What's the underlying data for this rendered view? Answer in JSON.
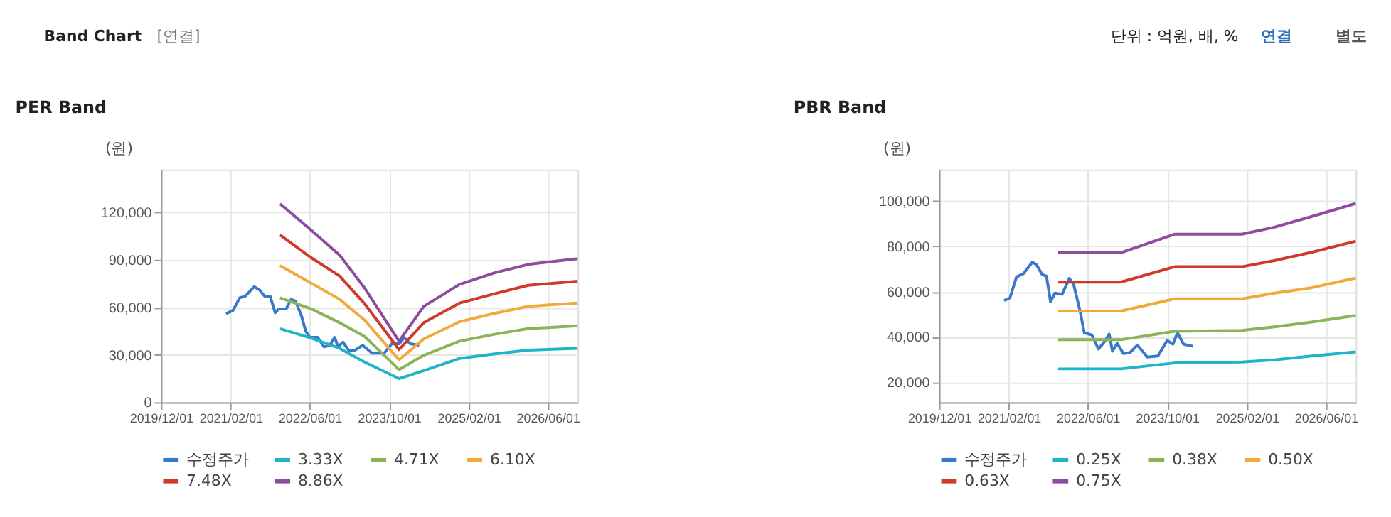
{
  "chart_data": [
    {
      "type": "line",
      "title": "PER Band",
      "ylabel": "(원)",
      "annotations": [
        "Band Chart",
        "[연결]",
        "단위 : 억원, 배, %",
        "연결",
        "별도"
      ],
      "xlim": [
        "2019-12-01",
        "2026-12-01"
      ],
      "xticks": [
        {
          "value": "2019-12-01",
          "label": "2019/12/01"
        },
        {
          "value": "2021-02-01",
          "label": "2021/02/01"
        },
        {
          "value": "2022-06-01",
          "label": "2022/06/01"
        },
        {
          "value": "2023-10-01",
          "label": "2023/10/01"
        },
        {
          "value": "2025-02-01",
          "label": "2025/02/01"
        },
        {
          "value": "2026-06-01",
          "label": "2026/06/01"
        }
      ],
      "ylim": [
        0,
        147000
      ],
      "yticks": [
        {
          "value": 0,
          "label": "0"
        },
        {
          "value": 30000,
          "label": "30,000"
        },
        {
          "value": 60000,
          "label": "60,000"
        },
        {
          "value": 90000,
          "label": "90,000"
        },
        {
          "value": 120000,
          "label": "120,000"
        }
      ],
      "grid": true,
      "legend": "bottom",
      "marker": "none",
      "line_style": "solid",
      "series": [
        {
          "name": "수정주가",
          "color": "#3a78c9",
          "x": [
            "2021-01-03",
            "2021-02-15",
            "2021-03-28",
            "2021-05-01",
            "2021-06-25",
            "2021-07-28",
            "2021-08-28",
            "2021-10-01",
            "2021-11-01",
            "2021-11-22",
            "2022-01-07",
            "2022-02-07",
            "2022-03-05",
            "2022-04-10",
            "2022-05-07",
            "2022-06-01",
            "2022-07-20",
            "2022-08-28",
            "2022-10-01",
            "2022-11-01",
            "2022-11-22",
            "2022-12-22",
            "2023-01-25",
            "2023-03-07",
            "2023-04-22",
            "2023-06-18",
            "2023-09-01",
            "2023-10-18",
            "2023-12-03",
            "2024-01-01",
            "2024-02-07",
            "2024-04-03"
          ],
          "values": [
            56000,
            58000,
            66000,
            67000,
            73000,
            71000,
            67000,
            67000,
            56500,
            59000,
            59000,
            65000,
            64000,
            55000,
            45000,
            41000,
            41000,
            35000,
            36000,
            41000,
            35000,
            38000,
            33000,
            33000,
            36000,
            31000,
            31000,
            37000,
            37000,
            41000,
            37000,
            36000
          ]
        },
        {
          "name": "3.33X",
          "color": "#1fb5c6",
          "x": [
            "2021-12-01",
            "2022-06-07",
            "2022-12-01",
            "2023-05-05",
            "2023-12-01",
            "2024-05-01",
            "2024-12-07",
            "2025-07-10",
            "2026-02-01",
            "2026-12-01"
          ],
          "values": [
            46500,
            40600,
            34100,
            25300,
            15000,
            20000,
            27700,
            30600,
            33000,
            34100
          ]
        },
        {
          "name": "4.71X",
          "color": "#8cb25a",
          "x": [
            "2021-12-01",
            "2022-06-07",
            "2022-12-01",
            "2023-05-05",
            "2023-12-01",
            "2024-05-01",
            "2024-12-07",
            "2025-07-10",
            "2026-02-01",
            "2026-12-01"
          ],
          "values": [
            66000,
            59200,
            50300,
            41500,
            20600,
            29700,
            38600,
            43000,
            46500,
            48300
          ]
        },
        {
          "name": "6.10X",
          "color": "#f2a93b",
          "x": [
            "2021-12-01",
            "2022-06-07",
            "2022-12-01",
            "2023-05-05",
            "2023-12-01",
            "2024-05-01",
            "2024-12-07",
            "2025-07-10",
            "2026-02-01",
            "2026-12-01"
          ],
          "values": [
            86300,
            75400,
            65100,
            51800,
            26800,
            40000,
            50900,
            56200,
            60600,
            62700
          ]
        },
        {
          "name": "7.48X",
          "color": "#d03a2b",
          "x": [
            "2021-12-01",
            "2022-06-07",
            "2022-12-01",
            "2023-05-05",
            "2023-12-01",
            "2024-05-01",
            "2024-12-07",
            "2025-07-10",
            "2026-02-01",
            "2026-12-01"
          ],
          "values": [
            105700,
            91500,
            79800,
            62100,
            33300,
            50300,
            62700,
            68600,
            73900,
            76500
          ]
        },
        {
          "name": "8.86X",
          "color": "#8e4c9e",
          "x": [
            "2021-12-01",
            "2022-06-07",
            "2022-12-01",
            "2023-05-05",
            "2023-12-01",
            "2024-05-01",
            "2024-12-07",
            "2025-07-10",
            "2026-02-01",
            "2026-12-01"
          ],
          "values": [
            125400,
            109000,
            93000,
            72000,
            38600,
            60600,
            74500,
            81800,
            87100,
            90700
          ]
        }
      ]
    },
    {
      "type": "line",
      "title": "PBR Band",
      "ylabel": "(원)",
      "xlim": [
        "2019-12-01",
        "2026-12-01"
      ],
      "xticks": [
        {
          "value": "2019-12-01",
          "label": "2019/12/01"
        },
        {
          "value": "2021-02-01",
          "label": "2021/02/01"
        },
        {
          "value": "2022-06-01",
          "label": "2022/06/01"
        },
        {
          "value": "2023-10-01",
          "label": "2023/10/01"
        },
        {
          "value": "2025-02-01",
          "label": "2025/02/01"
        },
        {
          "value": "2026-06-01",
          "label": "2026/06/01"
        }
      ],
      "ylim": [
        11000,
        114000
      ],
      "yticks": [
        {
          "value": 20000,
          "label": "20,000"
        },
        {
          "value": 40000,
          "label": "40,000"
        },
        {
          "value": 60000,
          "label": "60,000"
        },
        {
          "value": 80000,
          "label": "80,000"
        },
        {
          "value": 100000,
          "label": "100,000"
        }
      ],
      "grid": true,
      "legend": "bottom",
      "marker": "none",
      "line_style": "solid",
      "series": [
        {
          "name": "수정주가",
          "color": "#3a78c9",
          "x": [
            "2021-01-03",
            "2021-02-08",
            "2021-03-20",
            "2021-05-01",
            "2021-06-25",
            "2021-07-20",
            "2021-08-25",
            "2021-09-20",
            "2021-10-15",
            "2021-11-10",
            "2021-12-25",
            "2022-02-07",
            "2022-03-05",
            "2022-04-15",
            "2022-05-10",
            "2022-06-25",
            "2022-08-05",
            "2022-09-10",
            "2022-10-10",
            "2022-10-30",
            "2022-11-28",
            "2023-01-05",
            "2023-02-15",
            "2023-04-01",
            "2023-06-01",
            "2023-08-05",
            "2023-10-01",
            "2023-11-05",
            "2023-12-03",
            "2024-01-10",
            "2024-03-08"
          ],
          "values": [
            56000,
            57200,
            66500,
            67900,
            73000,
            72000,
            67500,
            66800,
            55500,
            59300,
            58800,
            65800,
            63400,
            51100,
            41800,
            40800,
            34600,
            37700,
            41200,
            33600,
            37100,
            32600,
            33000,
            36300,
            31000,
            31500,
            38400,
            36700,
            41800,
            36700,
            35800
          ]
        },
        {
          "name": "0.25X",
          "color": "#1fb5c6",
          "x": [
            "2021-12-01",
            "2022-12-20",
            "2023-11-15",
            "2025-01-01",
            "2025-07-20",
            "2026-03-05",
            "2026-12-01"
          ],
          "values": [
            25800,
            25800,
            28400,
            28800,
            29800,
            31500,
            33300
          ]
        },
        {
          "name": "0.38X",
          "color": "#8cb25a",
          "x": [
            "2021-12-01",
            "2022-12-20",
            "2023-11-15",
            "2025-01-01",
            "2025-07-20",
            "2026-03-05",
            "2026-12-01"
          ],
          "values": [
            38700,
            38700,
            42400,
            42800,
            44400,
            46500,
            49400
          ]
        },
        {
          "name": "0.50X",
          "color": "#f2a93b",
          "x": [
            "2021-12-01",
            "2022-12-20",
            "2023-11-15",
            "2025-01-01",
            "2025-07-20",
            "2026-03-05",
            "2026-12-01"
          ],
          "values": [
            51400,
            51400,
            56800,
            56800,
            59300,
            61700,
            66000
          ]
        },
        {
          "name": "0.63X",
          "color": "#d03a2b",
          "x": [
            "2021-12-01",
            "2022-12-20",
            "2023-11-15",
            "2025-01-01",
            "2025-07-20",
            "2026-03-05",
            "2026-12-01"
          ],
          "values": [
            64200,
            64200,
            71000,
            71000,
            73700,
            77400,
            82300
          ]
        },
        {
          "name": "0.75X",
          "color": "#8e4c9e",
          "x": [
            "2021-12-01",
            "2022-12-20",
            "2023-11-15",
            "2025-01-01",
            "2025-07-20",
            "2026-03-05",
            "2026-12-01"
          ],
          "values": [
            77200,
            77200,
            85400,
            85400,
            88500,
            93200,
            99000
          ]
        }
      ]
    }
  ]
}
